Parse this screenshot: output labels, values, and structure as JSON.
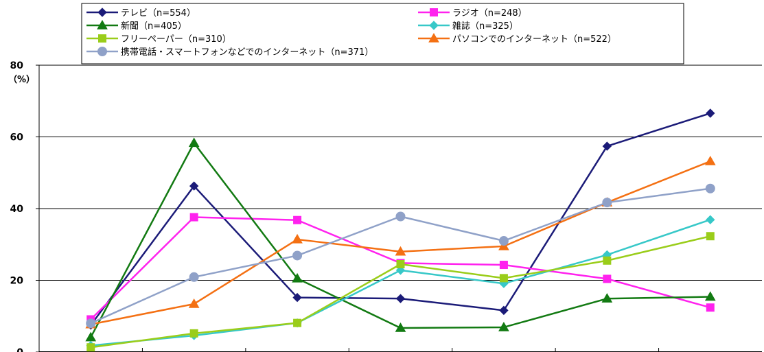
{
  "chart_data": {
    "type": "line",
    "categories": [
      "",
      "",
      "",
      "",
      "",
      "",
      ""
    ],
    "y_unit_label": "（%）",
    "ylim": [
      0,
      80
    ],
    "yticks": [
      0,
      20,
      40,
      60,
      80
    ],
    "grid": true,
    "legend_position": "top",
    "series": [
      {
        "name": "テレビ（n=554）",
        "color": "#1b1b78",
        "marker": "diamond",
        "values": [
          7.5,
          46.3,
          15.2,
          14.9,
          11.6,
          57.4,
          66.6
        ]
      },
      {
        "name": "ラジオ（n=248）",
        "color": "#ff22ee",
        "marker": "square",
        "values": [
          9.1,
          37.6,
          36.8,
          24.8,
          24.3,
          20.4,
          12.4
        ]
      },
      {
        "name": "新聞（n=405）",
        "color": "#127a12",
        "marker": "triangle",
        "values": [
          4.1,
          58.3,
          20.5,
          6.7,
          6.9,
          14.9,
          15.4
        ]
      },
      {
        "name": "雑誌（n=325）",
        "color": "#37c8c8",
        "marker": "diamond",
        "values": [
          1.8,
          4.6,
          8.1,
          22.8,
          19.1,
          27.1,
          36.9
        ]
      },
      {
        "name": "フリーペーパー（n=310）",
        "color": "#9acd1a",
        "marker": "square",
        "values": [
          1.3,
          5.2,
          8.1,
          24.5,
          20.6,
          25.5,
          32.3
        ]
      },
      {
        "name": "パソコンでのインターネット（n=522）",
        "color": "#f47013",
        "marker": "triangle",
        "values": [
          7.7,
          13.4,
          31.4,
          28.0,
          29.5,
          41.7,
          53.2
        ]
      },
      {
        "name": "携帯電話・スマートフォンなどでのインターネット（n=371）",
        "color": "#8fa1c8",
        "marker": "circle",
        "values": [
          8.0,
          20.9,
          26.9,
          37.8,
          31.0,
          41.7,
          45.6
        ]
      }
    ]
  }
}
